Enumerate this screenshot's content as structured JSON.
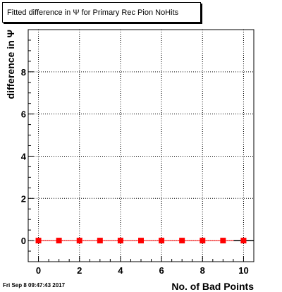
{
  "chart_data": {
    "type": "scatter",
    "title": "Fitted difference in  Ψ  for Primary Rec Pion NoHits",
    "xlabel": "No. of Bad Points",
    "ylabel": "difference in  Ψ",
    "xlim": [
      -0.5,
      10.5
    ],
    "ylim": [
      -1.0,
      10.0
    ],
    "xticks": [
      0,
      2,
      4,
      6,
      8,
      10
    ],
    "yticks": [
      0,
      2,
      4,
      6,
      8
    ],
    "xtick_labels": [
      "0",
      "2",
      "4",
      "6",
      "8",
      "10"
    ],
    "ytick_labels": [
      "0",
      "2",
      "4",
      "6",
      "8"
    ],
    "grid": true,
    "series": [
      {
        "x": [
          0,
          1,
          2,
          3,
          4,
          5,
          6,
          7,
          8,
          9,
          10
        ],
        "y": [
          0,
          0,
          0,
          0,
          0,
          0,
          0,
          0,
          0,
          0,
          0
        ],
        "color": "#ff0000",
        "marker": "square"
      }
    ]
  },
  "timestamp": "Fri Sep  8 09:47:43 2017"
}
